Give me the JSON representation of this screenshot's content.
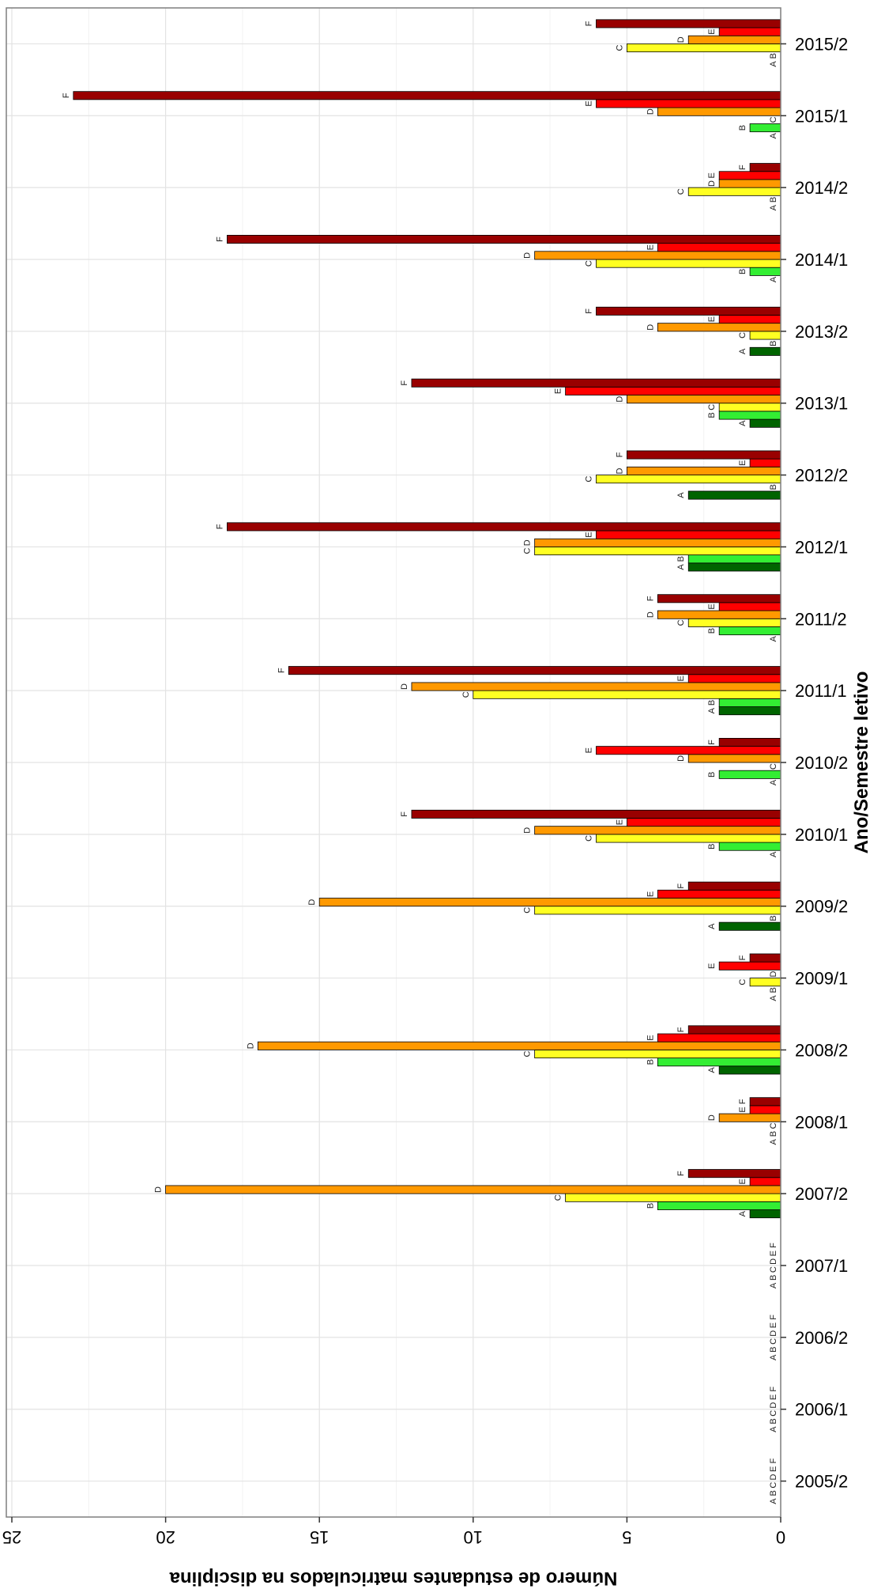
{
  "chart_data": {
    "type": "bar",
    "orientation": "horizontal",
    "rotated": true,
    "title": "",
    "xlabel": "Ano/Semestre letivo",
    "ylabel": "Número de estudantes matriculados na disciplina",
    "ylim": [
      0,
      25
    ],
    "yticks": [
      0,
      5,
      10,
      15,
      20,
      25
    ],
    "grid": true,
    "legend": "none",
    "categories": [
      "2005/2",
      "2006/1",
      "2006/2",
      "2007/1",
      "2007/2",
      "2008/1",
      "2008/2",
      "2009/1",
      "2009/2",
      "2010/1",
      "2010/2",
      "2011/1",
      "2011/2",
      "2012/1",
      "2012/2",
      "2013/1",
      "2013/2",
      "2014/1",
      "2014/2",
      "2015/1",
      "2015/2"
    ],
    "series": [
      {
        "name": "A",
        "color": "#006400",
        "values": [
          0,
          0,
          0,
          0,
          1,
          0,
          2,
          0,
          2,
          0,
          0,
          2,
          0,
          3,
          3,
          1,
          1,
          0,
          0,
          0,
          0
        ]
      },
      {
        "name": "B",
        "color": "#33ee33",
        "values": [
          0,
          0,
          0,
          0,
          4,
          0,
          4,
          0,
          0,
          2,
          2,
          2,
          2,
          3,
          0,
          2,
          0,
          1,
          0,
          1,
          0
        ]
      },
      {
        "name": "C",
        "color": "#ffff22",
        "values": [
          0,
          0,
          0,
          0,
          7,
          0,
          8,
          1,
          8,
          6,
          0,
          10,
          3,
          8,
          6,
          2,
          1,
          6,
          3,
          0,
          5
        ]
      },
      {
        "name": "D",
        "color": "#ff9900",
        "values": [
          0,
          0,
          0,
          0,
          20,
          2,
          17,
          0,
          15,
          8,
          3,
          12,
          4,
          8,
          5,
          5,
          4,
          8,
          2,
          4,
          3
        ]
      },
      {
        "name": "E",
        "color": "#ff0000",
        "values": [
          0,
          0,
          0,
          0,
          1,
          1,
          4,
          2,
          4,
          5,
          6,
          3,
          2,
          6,
          1,
          7,
          2,
          4,
          2,
          6,
          2
        ]
      },
      {
        "name": "F",
        "color": "#990000",
        "values": [
          0,
          0,
          0,
          0,
          3,
          1,
          3,
          1,
          3,
          12,
          2,
          16,
          4,
          18,
          5,
          12,
          6,
          18,
          1,
          23,
          6
        ]
      }
    ]
  }
}
